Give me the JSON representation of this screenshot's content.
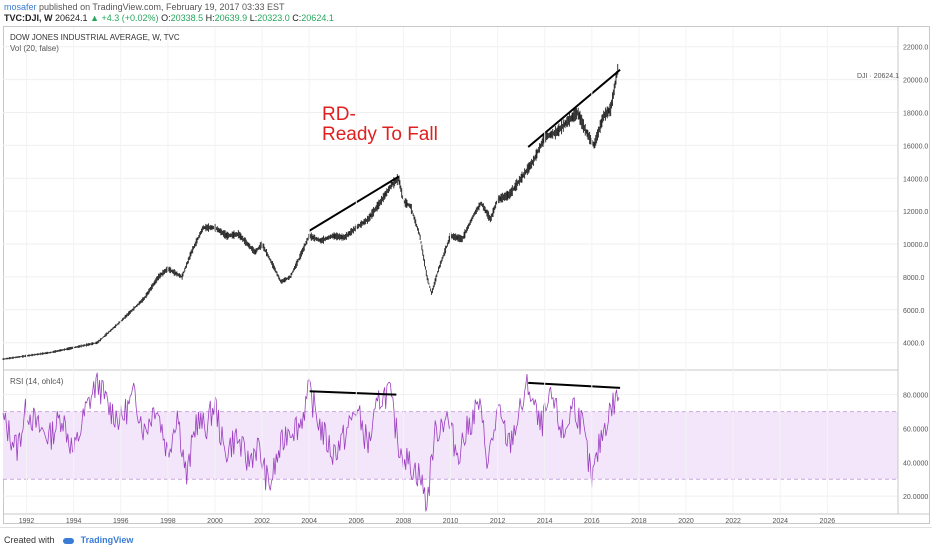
{
  "header": {
    "user": "mosafer",
    "published": "published on TradingView.com, February 19, 2017 03:33 EST",
    "symbol": "TVC:DJI, W",
    "last": "20624.1",
    "change": "+4.3 (+0.02%)",
    "o_label": "O:",
    "o_val": "20338.5",
    "h_label": "H:",
    "h_val": "20639.9",
    "l_label": "L:",
    "l_val": "20323.0",
    "c_label": "C:",
    "c_val": "20624.1"
  },
  "legend": {
    "title": "DOW JONES INDUSTRIAL AVERAGE, W, TVC",
    "vol": "Vol (20, false)",
    "rsi": "RSI (14, ohlc4)"
  },
  "annotation": {
    "line1": "RD-",
    "line2": "Ready To Fall"
  },
  "price_tag": "DJI · 20624.1",
  "footer": {
    "created": "Created with",
    "brand": "TradingView"
  },
  "colors": {
    "candles": "#222222",
    "rsi_line": "#9b3fbf",
    "rsi_band": "#f3e6fb",
    "annotation": "#e02020",
    "up": "#26a65b"
  },
  "chart_data": [
    {
      "type": "line",
      "series": [
        {
          "name": "DJI",
          "x": [
            1991.0,
            1992.0,
            1993.0,
            1994.0,
            1995.0,
            1996.0,
            1997.0,
            1997.6,
            1998.0,
            1998.6,
            1999.0,
            1999.5,
            2000.0,
            2000.5,
            2001.0,
            2001.7,
            2002.0,
            2002.5,
            2002.8,
            2003.2,
            2003.6,
            2004.0,
            2004.5,
            2005.0,
            2005.5,
            2006.0,
            2006.5,
            2007.0,
            2007.5,
            2007.8,
            2008.0,
            2008.3,
            2008.7,
            2009.0,
            2009.2,
            2009.5,
            2010.0,
            2010.5,
            2011.0,
            2011.3,
            2011.7,
            2012.0,
            2012.5,
            2013.0,
            2013.5,
            2014.0,
            2014.5,
            2015.0,
            2015.4,
            2015.7,
            2016.0,
            2016.1,
            2016.5,
            2016.8,
            2017.0,
            2017.1
          ],
          "values": [
            3000,
            3200,
            3400,
            3700,
            4000,
            5300,
            6700,
            8000,
            8500,
            8000,
            9500,
            11000,
            11000,
            10500,
            10600,
            9500,
            10000,
            8600,
            7700,
            8000,
            9200,
            10500,
            10200,
            10500,
            10400,
            11000,
            11500,
            12500,
            13600,
            14000,
            12600,
            12300,
            10500,
            8000,
            7000,
            8500,
            10500,
            10300,
            11800,
            12500,
            11500,
            12700,
            13000,
            14000,
            15000,
            16500,
            16800,
            17500,
            18000,
            17000,
            16200,
            16000,
            17800,
            18200,
            19800,
            20624
          ]
        }
      ],
      "yticks": [
        4000,
        6000,
        8000,
        10000,
        12000,
        14000,
        16000,
        18000,
        20000,
        22000
      ],
      "ytick_labels": [
        "4000.0",
        "6000.0",
        "8000.0",
        "10000.0",
        "12000.0",
        "14000.0",
        "16000.0",
        "18000.0",
        "20000.0",
        "22000.0"
      ],
      "ylim": [
        2400,
        23200
      ],
      "xlim": [
        1991.0,
        2029.0
      ],
      "xticks": [
        "1992",
        "1994",
        "1996",
        "1998",
        "2000",
        "2002",
        "2004",
        "2006",
        "2008",
        "2010",
        "2012",
        "2014",
        "2016",
        "2018",
        "2020",
        "2022",
        "2024",
        "2026"
      ],
      "trendlines": [
        [
          2004.0,
          10800,
          2007.8,
          14100
        ],
        [
          2013.3,
          15900,
          2017.2,
          20600
        ]
      ]
    },
    {
      "type": "line",
      "series": [
        {
          "name": "RSI",
          "x": [
            1991.0,
            1991.6,
            1992.0,
            1992.5,
            1993.0,
            1993.5,
            1994.0,
            1994.5,
            1995.0,
            1995.5,
            1996.0,
            1996.6,
            1997.0,
            1997.5,
            1998.0,
            1998.4,
            1998.8,
            1999.2,
            1999.6,
            2000.0,
            2000.4,
            2000.9,
            2001.4,
            2001.8,
            2002.3,
            2002.7,
            2003.1,
            2003.6,
            2004.0,
            2004.5,
            2005.0,
            2005.5,
            2006.0,
            2006.5,
            2007.0,
            2007.4,
            2007.8,
            2008.2,
            2008.7,
            2009.0,
            2009.3,
            2009.8,
            2010.3,
            2010.8,
            2011.2,
            2011.6,
            2012.0,
            2012.5,
            2013.0,
            2013.3,
            2013.8,
            2014.3,
            2014.8,
            2015.2,
            2015.6,
            2016.0,
            2016.4,
            2016.8,
            2017.0,
            2017.15
          ],
          "values": [
            65,
            48,
            72,
            60,
            55,
            68,
            45,
            70,
            88,
            72,
            65,
            80,
            58,
            75,
            45,
            70,
            30,
            65,
            60,
            75,
            45,
            55,
            40,
            50,
            25,
            45,
            60,
            62,
            82,
            60,
            45,
            55,
            72,
            50,
            78,
            82,
            50,
            40,
            32,
            15,
            55,
            68,
            45,
            62,
            75,
            40,
            70,
            50,
            72,
            86,
            60,
            78,
            55,
            75,
            62,
            28,
            55,
            72,
            76,
            82
          ]
        }
      ],
      "ylim": [
        10,
        94
      ],
      "yticks": [
        20,
        40,
        60,
        80
      ],
      "ytick_labels": [
        "20.0000",
        "40.0000",
        "60.0000",
        "80.0000"
      ],
      "band": [
        30,
        70
      ],
      "trendlines": [
        [
          2004.0,
          82,
          2007.7,
          80
        ],
        [
          2013.3,
          87,
          2017.2,
          84
        ]
      ]
    }
  ]
}
